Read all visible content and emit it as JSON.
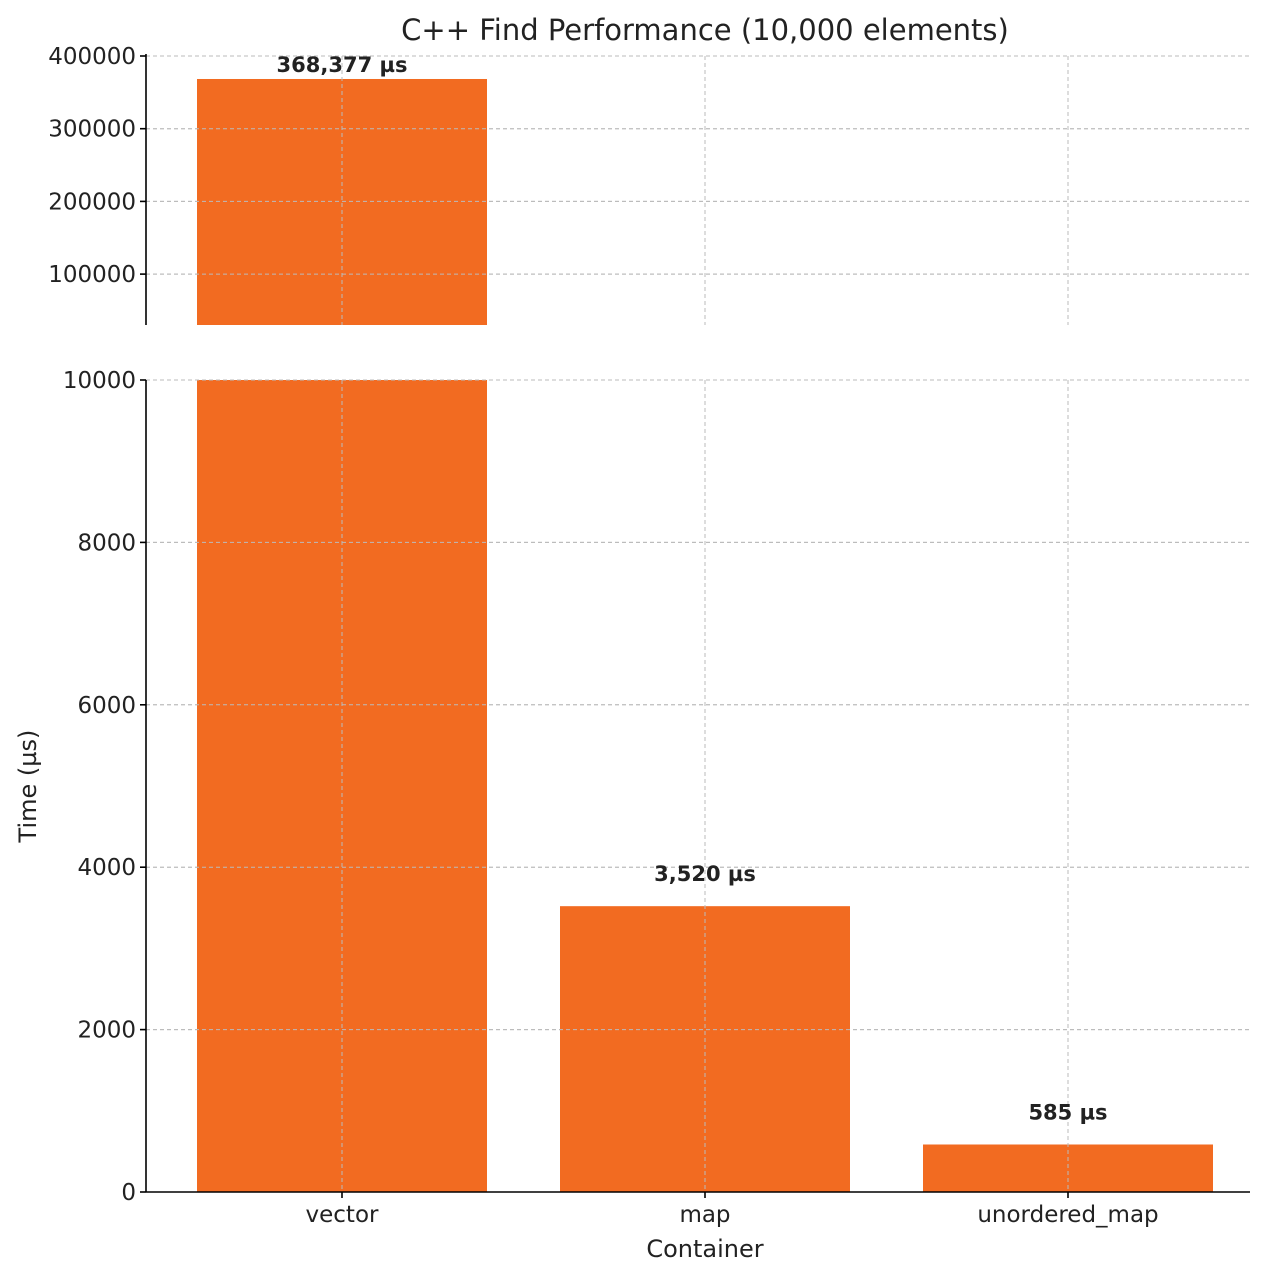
{
  "chart_data": {
    "type": "bar",
    "title": "C++ Find Performance (10,000 elements)",
    "xlabel": "Container",
    "ylabel": "Time (µs)",
    "categories": [
      "vector",
      "map",
      "unordered_map"
    ],
    "values": [
      368377,
      3520,
      585
    ],
    "data_labels": [
      "368,377 µs",
      "3,520 µs",
      "585 µs"
    ],
    "bar_color": "#f26b21",
    "broken_axis": true,
    "top_panel": {
      "ylim": [
        30000,
        400000
      ],
      "yticks": [
        100000,
        200000,
        300000,
        400000
      ]
    },
    "bottom_panel": {
      "ylim": [
        0,
        10000
      ],
      "yticks": [
        0,
        2000,
        4000,
        6000,
        8000,
        10000
      ]
    },
    "grid": true
  }
}
